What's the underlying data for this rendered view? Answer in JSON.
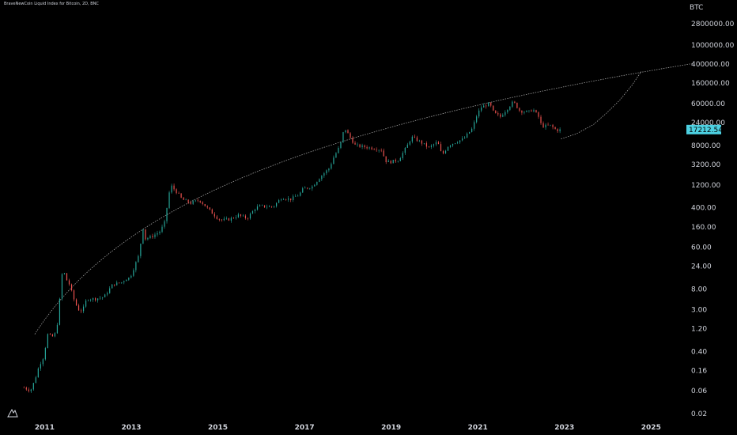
{
  "header": {
    "symbol_title": "BraveNewCoin Liquid Index for Bitcoin, 2D, BNC"
  },
  "colors": {
    "background": "#000000",
    "up_candle": "#26a69a",
    "down_candle": "#ef5350",
    "curve": "#9e9e9e",
    "price_tag": "#4dd0e1",
    "axis_text": "#d1d4dc"
  },
  "icons": {
    "logo": "tradingview-logo-icon"
  },
  "chart_data": {
    "type": "candlestick",
    "title": "BraveNewCoin Liquid Index for Bitcoin, 2D, BNC",
    "y_unit": "BTC",
    "y_scale": "log",
    "ylim": [
      0.02,
      2800000
    ],
    "xlim": [
      2010.6,
      2026.3
    ],
    "y_ticks": [
      "2800000.00",
      "1000000.00",
      "400000.00",
      "160000.00",
      "60000.00",
      "24000.00",
      "8000.00",
      "3200.00",
      "1200.00",
      "400.00",
      "160.00",
      "60.00",
      "24.00",
      "8.00",
      "3.00",
      "1.20",
      "0.40",
      "0.16",
      "0.06",
      "0.02"
    ],
    "y_tick_values": [
      2800000,
      1000000,
      400000,
      160000,
      60000,
      24000,
      8000,
      3200,
      1200,
      400,
      160,
      60,
      24,
      8,
      3,
      1.2,
      0.4,
      0.16,
      0.06,
      0.02
    ],
    "x_ticks": [
      "2011",
      "2013",
      "2015",
      "2017",
      "2019",
      "2021",
      "2023",
      "2025"
    ],
    "x_tick_values": [
      2011,
      2013,
      2015,
      2017,
      2019,
      2021,
      2023,
      2025
    ],
    "last_price": "17212.54",
    "last_price_value": 17212.54,
    "price_path": [
      [
        2010.55,
        0.07
      ],
      [
        2010.7,
        0.06
      ],
      [
        2010.8,
        0.1
      ],
      [
        2010.9,
        0.2
      ],
      [
        2011.0,
        0.3
      ],
      [
        2011.1,
        0.9
      ],
      [
        2011.2,
        0.8
      ],
      [
        2011.3,
        1.0
      ],
      [
        2011.4,
        8
      ],
      [
        2011.45,
        26
      ],
      [
        2011.5,
        14
      ],
      [
        2011.6,
        10
      ],
      [
        2011.7,
        5
      ],
      [
        2011.8,
        3
      ],
      [
        2011.9,
        2.8
      ],
      [
        2012.0,
        5
      ],
      [
        2012.2,
        5
      ],
      [
        2012.4,
        5.5
      ],
      [
        2012.6,
        10
      ],
      [
        2012.8,
        11
      ],
      [
        2012.9,
        13
      ],
      [
        2013.0,
        14
      ],
      [
        2013.2,
        40
      ],
      [
        2013.3,
        150
      ],
      [
        2013.35,
        90
      ],
      [
        2013.5,
        100
      ],
      [
        2013.7,
        130
      ],
      [
        2013.8,
        200
      ],
      [
        2013.9,
        800
      ],
      [
        2013.95,
        1150
      ],
      [
        2014.1,
        800
      ],
      [
        2014.2,
        600
      ],
      [
        2014.4,
        500
      ],
      [
        2014.6,
        580
      ],
      [
        2014.8,
        380
      ],
      [
        2015.0,
        250
      ],
      [
        2015.1,
        220
      ],
      [
        2015.3,
        230
      ],
      [
        2015.5,
        280
      ],
      [
        2015.7,
        240
      ],
      [
        2015.9,
        400
      ],
      [
        2016.0,
        430
      ],
      [
        2016.3,
        420
      ],
      [
        2016.5,
        650
      ],
      [
        2016.7,
        600
      ],
      [
        2016.9,
        750
      ],
      [
        2017.0,
        1000
      ],
      [
        2017.2,
        1100
      ],
      [
        2017.4,
        1800
      ],
      [
        2017.6,
        2700
      ],
      [
        2017.7,
        4500
      ],
      [
        2017.85,
        8000
      ],
      [
        2017.95,
        19000
      ],
      [
        2018.05,
        13000
      ],
      [
        2018.2,
        8000
      ],
      [
        2018.4,
        7500
      ],
      [
        2018.6,
        7000
      ],
      [
        2018.8,
        6500
      ],
      [
        2018.9,
        3800
      ],
      [
        2019.0,
        3600
      ],
      [
        2019.2,
        4000
      ],
      [
        2019.4,
        8000
      ],
      [
        2019.5,
        12000
      ],
      [
        2019.7,
        9500
      ],
      [
        2019.9,
        7200
      ],
      [
        2020.1,
        9500
      ],
      [
        2020.2,
        5000
      ],
      [
        2020.35,
        8000
      ],
      [
        2020.5,
        9300
      ],
      [
        2020.7,
        11000
      ],
      [
        2020.9,
        18000
      ],
      [
        2021.0,
        33000
      ],
      [
        2021.1,
        50000
      ],
      [
        2021.3,
        60000
      ],
      [
        2021.4,
        38000
      ],
      [
        2021.55,
        32000
      ],
      [
        2021.7,
        46000
      ],
      [
        2021.85,
        66000
      ],
      [
        2022.0,
        42000
      ],
      [
        2022.2,
        40000
      ],
      [
        2022.3,
        46000
      ],
      [
        2022.45,
        30000
      ],
      [
        2022.5,
        20000
      ],
      [
        2022.7,
        21000
      ],
      [
        2022.85,
        16500
      ],
      [
        2022.95,
        17212
      ]
    ],
    "power_curve": {
      "a_log10": -1.52,
      "b_exponent": 5.8,
      "t0": 2009.0
    },
    "projection_curve": [
      [
        2022.95,
        11000
      ],
      [
        2023.3,
        14000
      ],
      [
        2023.7,
        22000
      ],
      [
        2024.0,
        38000
      ],
      [
        2024.3,
        70000
      ],
      [
        2024.6,
        150000
      ],
      [
        2024.8,
        280000
      ]
    ]
  }
}
